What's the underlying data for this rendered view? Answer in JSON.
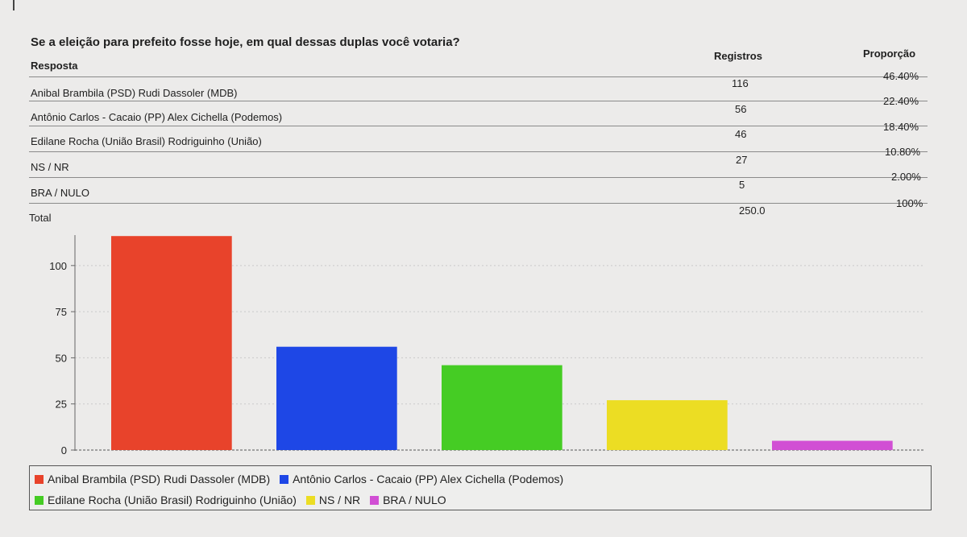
{
  "survey": {
    "question": "Se a eleição para prefeito fosse hoje, em qual dessas duplas você votaria?",
    "headers": {
      "response": "Resposta",
      "count": "Registros",
      "share": "Proporção"
    },
    "rows": [
      {
        "label": "Anibal Brambila (PSD)  Rudi Dassoler (MDB)",
        "count": "116",
        "share": "46.40%"
      },
      {
        "label": "Antônio Carlos  - Cacaio (PP)  Alex Cichella (Podemos)",
        "count": "56",
        "share": "22.40%"
      },
      {
        "label": "Edilane Rocha (União Brasil)  Rodriguinho (União)",
        "count": "46",
        "share": "18.40%"
      },
      {
        "label": "NS / NR",
        "count": "27",
        "share": "10.80%"
      },
      {
        "label": "BRA / NULO",
        "count": "5",
        "share": "2.00%"
      }
    ],
    "total": {
      "label": "Total",
      "count": "250.0",
      "share": "100%"
    }
  },
  "chart_data": {
    "type": "bar",
    "categories": [
      "Anibal Brambila (PSD)  Rudi Dassoler (MDB)",
      "Antônio Carlos  - Cacaio (PP)  Alex Cichella (Podemos)",
      "Edilane Rocha (União Brasil)  Rodriguinho (União)",
      "NS / NR",
      "BRA / NULO"
    ],
    "values": [
      116,
      56,
      46,
      27,
      5
    ],
    "colors": [
      "#e8432b",
      "#1e47e6",
      "#45cc24",
      "#ecdd23",
      "#d14fd4"
    ],
    "ylim": [
      0,
      120
    ],
    "yticks": [
      0,
      25,
      50,
      75,
      100
    ],
    "title": "",
    "xlabel": "",
    "ylabel": "",
    "grid": true,
    "legend": "bottom"
  }
}
